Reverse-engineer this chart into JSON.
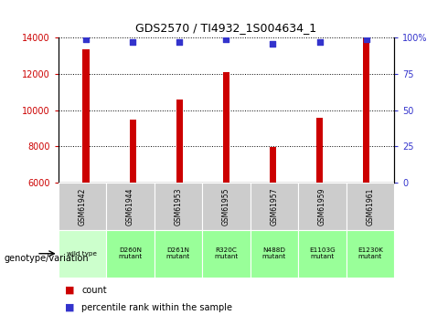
{
  "title": "GDS2570 / TI4932_1S004634_1",
  "samples": [
    "GSM61942",
    "GSM61944",
    "GSM61953",
    "GSM61955",
    "GSM61957",
    "GSM61959",
    "GSM61961"
  ],
  "counts": [
    13350,
    9480,
    10600,
    12100,
    7980,
    9600,
    13980
  ],
  "percentiles": [
    99,
    97,
    97,
    99,
    96,
    97,
    99
  ],
  "genotypes": [
    "wild type",
    "D260N\nmutant",
    "D261N\nmutant",
    "R320C\nmutant",
    "N488D\nmutant",
    "E1103G\nmutant",
    "E1230K\nmutant"
  ],
  "ylim_left": [
    6000,
    14000
  ],
  "ylim_right": [
    0,
    100
  ],
  "yticks_left": [
    6000,
    8000,
    10000,
    12000,
    14000
  ],
  "yticks_right": [
    0,
    25,
    50,
    75,
    100
  ],
  "bar_color": "#cc0000",
  "dot_color": "#3333cc",
  "bg_color": "#ffffff",
  "table_header_color": "#cccccc",
  "table_genotype_wt_color": "#ccffcc",
  "table_genotype_mut_color": "#99ff99",
  "legend_count_color": "#cc0000",
  "legend_pct_color": "#3333cc",
  "bar_width": 0.15,
  "figsize": [
    4.9,
    3.45
  ],
  "dpi": 100
}
